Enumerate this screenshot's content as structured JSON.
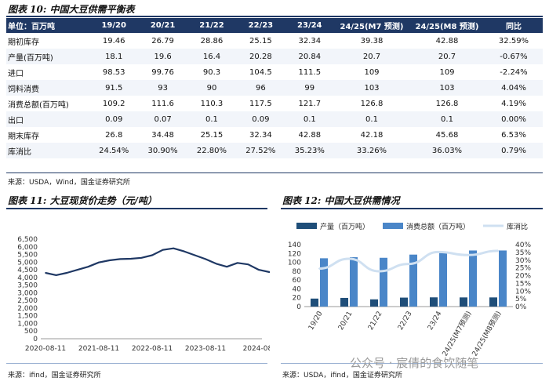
{
  "table_title": "图表 10:  中国大豆供需平衡表",
  "table": {
    "headers": [
      "单位：百万吨",
      "19/20",
      "20/21",
      "21/22",
      "22/23",
      "23/24",
      "24/25(M7 预测)",
      "24/25(M8 预测)",
      "同比"
    ],
    "rows": [
      [
        "期初库存",
        "19.46",
        "26.79",
        "28.86",
        "25.15",
        "32.34",
        "39.38",
        "42.88",
        "32.59%"
      ],
      [
        "产量(百万吨)",
        "18.1",
        "19.6",
        "16.4",
        "20.28",
        "20.84",
        "20.7",
        "20.7",
        "-0.67%"
      ],
      [
        "进口",
        "98.53",
        "99.76",
        "90.3",
        "104.5",
        "111.5",
        "109",
        "109",
        "-2.24%"
      ],
      [
        "饲料消费",
        "91.5",
        "93",
        "90",
        "96",
        "99",
        "103",
        "103",
        "4.04%"
      ],
      [
        "消费总额(百万吨)",
        "109.2",
        "111.6",
        "110.3",
        "117.5",
        "121.7",
        "126.8",
        "126.8",
        "4.19%"
      ],
      [
        "出口",
        "0.09",
        "0.07",
        "0.1",
        "0.09",
        "0.1",
        "0.1",
        "0.1",
        "0.00%"
      ],
      [
        "期末库存",
        "26.8",
        "34.48",
        "25.15",
        "32.34",
        "42.88",
        "42.18",
        "45.68",
        "6.53%"
      ],
      [
        "库消比",
        "24.54%",
        "30.90%",
        "22.80%",
        "27.52%",
        "35.23%",
        "33.26%",
        "36.03%",
        "0.79%"
      ]
    ]
  },
  "table_source": "来源：USDA，Wind，国金证券研究所",
  "chart11_title": "图表 11:  大豆现货价走势（元/吨）",
  "chart12_title": "图表 12:  中国大豆供需情况",
  "chart11_source": "来源：ifind，国金证券研究所",
  "chart12_source": "来源：USDA，ifind，国金证券研究所",
  "watermark": "公众号 · 宸倩的食饮随笔",
  "colors": {
    "navy": "#1f3864",
    "bar_dark": "#1f4e79",
    "bar_light": "#4a86c8",
    "line_light": "#cfe0f1"
  },
  "chart_data": [
    {
      "type": "line",
      "title": "大豆现货价走势（元/吨）",
      "x_ticks": [
        "2020-08-11",
        "2021-08-11",
        "2022-08-11",
        "2023-08-11",
        "2024-08-"
      ],
      "y_ticks": [
        "0",
        "500",
        "1,000",
        "1,500",
        "2,000",
        "2,500",
        "3,000",
        "3,500",
        "4,000",
        "4,500",
        "5,000",
        "5,500",
        "6,000",
        "6,500"
      ],
      "ylim": [
        0,
        6500
      ],
      "x": [
        0,
        0.2,
        0.4,
        0.6,
        0.8,
        1.0,
        1.2,
        1.4,
        1.6,
        1.8,
        2.0,
        2.2,
        2.4,
        2.6,
        2.8,
        3.0,
        3.2,
        3.4,
        3.6,
        3.8,
        4.0,
        4.2,
        4.35
      ],
      "values": [
        4300,
        4150,
        4300,
        4500,
        4700,
        4980,
        5120,
        5200,
        5220,
        5280,
        5450,
        5800,
        5900,
        5700,
        5450,
        5200,
        4900,
        4700,
        4950,
        4850,
        4500,
        4350,
        4420
      ]
    },
    {
      "type": "bar",
      "title": "中国大豆供需情况",
      "categories": [
        "19/20",
        "20/21",
        "21/22",
        "22/23",
        "23/24",
        "24/25(M7预测)",
        "24/25(M8预测)"
      ],
      "series": [
        {
          "name": "产量（百万吨）",
          "values": [
            18.1,
            19.6,
            16.4,
            20.28,
            20.84,
            20.7,
            20.7
          ]
        },
        {
          "name": "消费总额（百万吨）",
          "values": [
            109.2,
            111.6,
            110.3,
            117.5,
            121.7,
            126.8,
            126.8
          ]
        },
        {
          "name": "库消比",
          "axis": "right",
          "values": [
            24.54,
            30.9,
            22.8,
            27.52,
            35.23,
            33.26,
            36.03
          ]
        }
      ],
      "ylim": [
        0,
        140
      ],
      "y_ticks": [
        "0",
        "20",
        "40",
        "60",
        "80",
        "100",
        "120",
        "140"
      ],
      "y2lim": [
        0,
        40
      ],
      "y2_ticks": [
        "0%",
        "5%",
        "10%",
        "15%",
        "20%",
        "25%",
        "30%",
        "35%",
        "40%"
      ]
    }
  ]
}
